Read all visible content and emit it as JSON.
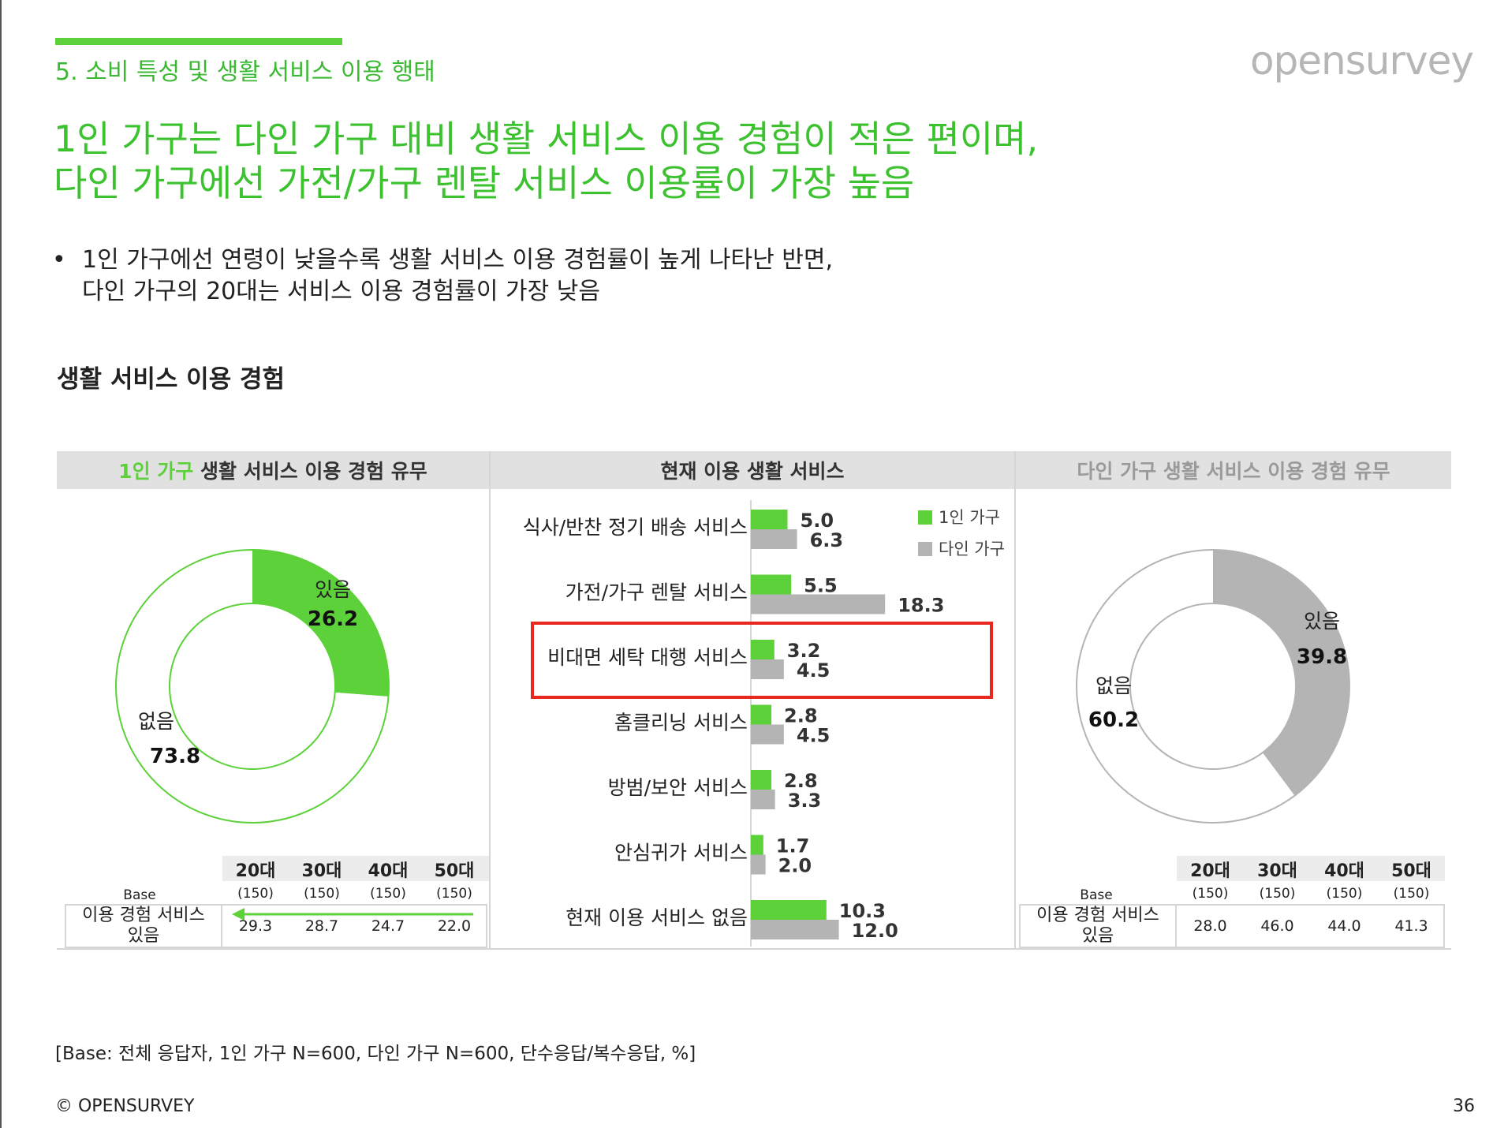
{
  "section": "5. 소비 특성 및 생활 서비스 이용 행태",
  "logo": "opensurvey",
  "headline": [
    "1인 가구는 다인 가구 대비 생활 서비스 이용 경험이 적은 편이며,",
    "다인 가구에선 가전/가구 렌탈 서비스 이용률이 가장 높음"
  ],
  "bullet": [
    "1인 가구에선 연령이 낮을수록 생활 서비스 이용 경험률이 높게 나타난 반면,",
    "다인 가구의 20대는 서비스 이용 경험률이 가장 낮음"
  ],
  "bullet_marker": "•",
  "subtitle": "생활 서비스 이용 경험",
  "left_panel": {
    "title_highlight": "1인 가구",
    "title_rest": " 생활 서비스 이용 경험 유무"
  },
  "mid_panel": {
    "title": "현재 이용 생활 서비스"
  },
  "right_panel": {
    "title_highlight": "다인 가구",
    "title_rest": " 생활 서비스 이용 경험 유무"
  },
  "colors": {
    "green": "#5cd13a",
    "grey": "#b4b4b4",
    "highlight_box": "#e8281e"
  },
  "chart_data": [
    {
      "type": "pie",
      "donut": true,
      "categories": [
        "있음",
        "없음"
      ],
      "values": [
        26.2,
        73.8
      ],
      "colors": [
        "#5cd13a",
        "#ffffff"
      ]
    },
    {
      "type": "bar",
      "orientation": "horizontal",
      "categories": [
        "식사/반찬 정기 배송 서비스",
        "가전/가구 렌탈 서비스",
        "비대면 세탁 대행 서비스",
        "홈클리닝 서비스",
        "방범/보안 서비스",
        "안심귀가 서비스",
        "현재 이용 서비스 없음"
      ],
      "series": [
        {
          "name": "1인 가구",
          "values": [
            5.0,
            5.5,
            3.2,
            2.8,
            2.8,
            1.7,
            10.3
          ],
          "labels": [
            "5.0",
            "5.5",
            "3.2",
            "2.8",
            "2.8",
            "1.7",
            "10.3"
          ]
        },
        {
          "name": "다인 가구",
          "values": [
            6.3,
            18.3,
            4.5,
            4.5,
            3.3,
            2.0,
            12.0
          ],
          "labels": [
            "6.3",
            "18.3",
            "4.5",
            "4.5",
            "3.3",
            "2.0",
            "12.0"
          ]
        }
      ],
      "highlighted_category": "비대면 세탁 대행 서비스",
      "legend": "top-right"
    },
    {
      "type": "pie",
      "donut": true,
      "categories": [
        "있음",
        "없음"
      ],
      "values": [
        39.8,
        60.2
      ],
      "colors": [
        "#b4b4b4",
        "#ffffff"
      ]
    }
  ],
  "tables": {
    "left": {
      "columns": [
        "20대",
        "30대",
        "40대",
        "50대"
      ],
      "bases": [
        "(150)",
        "(150)",
        "(150)",
        "(150)"
      ],
      "base_label": "Base",
      "row_label": [
        "이용 경험 서비스",
        "있음"
      ],
      "values": [
        "29.3",
        "28.7",
        "24.7",
        "22.0"
      ]
    },
    "right": {
      "columns": [
        "20대",
        "30대",
        "40대",
        "50대"
      ],
      "bases": [
        "(150)",
        "(150)",
        "(150)",
        "(150)"
      ],
      "base_label": "Base",
      "row_label": [
        "이용 경험 서비스",
        "있음"
      ],
      "values": [
        "28.0",
        "46.0",
        "44.0",
        "41.3"
      ]
    }
  },
  "footnote": "[Base: 전체 응답자, 1인 가구 N=600, 다인 가구 N=600, 단수응답/복수응답, %]",
  "copyright": "© OPENSURVEY",
  "page_number": "36"
}
